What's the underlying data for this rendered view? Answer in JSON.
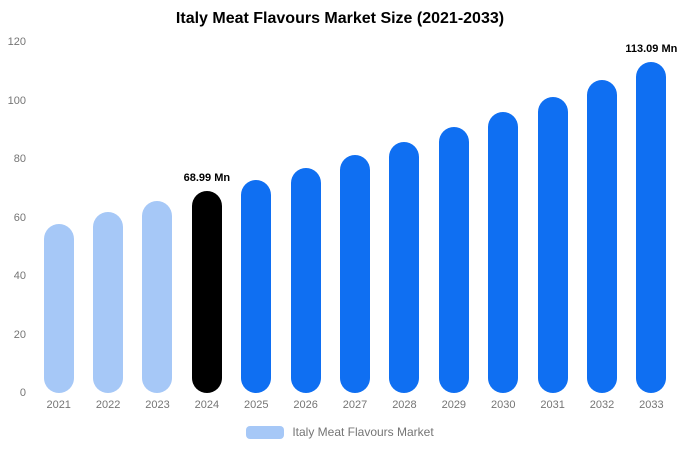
{
  "chart_data": {
    "type": "bar",
    "title": "Italy Meat Flavours Market Size (2021-2033)",
    "xlabel": "",
    "ylabel": "",
    "unit": "Mn",
    "ylim": [
      0,
      120
    ],
    "yticks": [
      0,
      20,
      40,
      60,
      80,
      100,
      120
    ],
    "grid": false,
    "legend": {
      "label": "Italy Meat Flavours Market",
      "position": "bottom"
    },
    "colors": {
      "historical": "#a6c8f7",
      "highlight": "#000000",
      "forecast": "#0f6ff2"
    },
    "points": [
      {
        "year": "2021",
        "value": 57.8,
        "role": "historical",
        "label": ""
      },
      {
        "year": "2022",
        "value": 61.9,
        "role": "historical",
        "label": ""
      },
      {
        "year": "2023",
        "value": 65.6,
        "role": "historical",
        "label": ""
      },
      {
        "year": "2024",
        "value": 68.99,
        "role": "highlight",
        "label": "68.99 Mn"
      },
      {
        "year": "2025",
        "value": 72.9,
        "role": "forecast",
        "label": ""
      },
      {
        "year": "2026",
        "value": 77.0,
        "role": "forecast",
        "label": ""
      },
      {
        "year": "2027",
        "value": 81.3,
        "role": "forecast",
        "label": ""
      },
      {
        "year": "2028",
        "value": 85.9,
        "role": "forecast",
        "label": ""
      },
      {
        "year": "2029",
        "value": 90.8,
        "role": "forecast",
        "label": ""
      },
      {
        "year": "2030",
        "value": 95.9,
        "role": "forecast",
        "label": ""
      },
      {
        "year": "2031",
        "value": 101.3,
        "role": "forecast",
        "label": ""
      },
      {
        "year": "2032",
        "value": 107.0,
        "role": "forecast",
        "label": ""
      },
      {
        "year": "2033",
        "value": 113.09,
        "role": "forecast",
        "label": "113.09 Mn"
      }
    ]
  }
}
